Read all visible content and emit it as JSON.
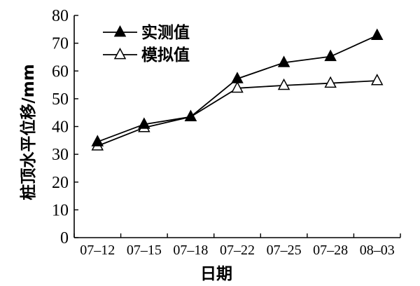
{
  "chart_data": {
    "type": "line",
    "categories": [
      "07–12",
      "07–15",
      "07–18",
      "07–22",
      "07–25",
      "07–28",
      "08–03"
    ],
    "xlabel": "日期",
    "ylabel": "桩顶水平位移/mm",
    "ylim": [
      0,
      80
    ],
    "yticks": [
      0,
      10,
      20,
      30,
      40,
      50,
      60,
      70,
      80
    ],
    "legend_position": "top-left",
    "grid": false,
    "series": [
      {
        "name": "实测值",
        "marker": "filled-triangle",
        "color": "#000000",
        "x": [
          0.5,
          1.5,
          2.5,
          3.5,
          4.5,
          5.5,
          6.5
        ],
        "values": [
          34.5,
          40.8,
          43.5,
          57.2,
          63.0,
          65.2,
          72.8
        ]
      },
      {
        "name": "模拟值",
        "marker": "open-triangle",
        "color": "#000000",
        "x": [
          0.5,
          1.5,
          2.5,
          3.5,
          4.5,
          5.5,
          6.5
        ],
        "values": [
          33.0,
          39.6,
          43.5,
          53.8,
          54.8,
          55.6,
          56.5
        ]
      }
    ]
  }
}
